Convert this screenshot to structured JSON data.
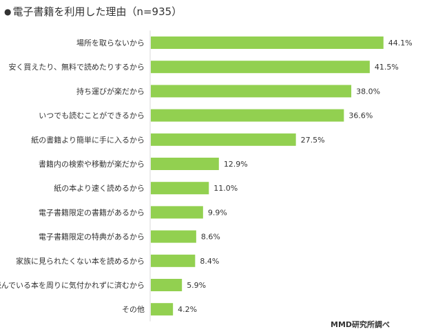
{
  "title": "電子書籍を利用した理由（n=935）",
  "bullet": "●",
  "credit": "MMD研究所調べ",
  "colors": {
    "bar": "#92d050",
    "text": "#333333",
    "axis": "#d9d9d9"
  },
  "chart_data": {
    "type": "bar",
    "orientation": "horizontal",
    "title": "電子書籍を利用した理由（n=935）",
    "xlabel": "",
    "ylabel": "",
    "xlim": [
      0,
      50
    ],
    "grid": false,
    "legend": "none",
    "categories": [
      "場所を取らないから",
      "安く買えたり、無料で読めたりするから",
      "持ち運びが楽だから",
      "いつでも読むことができるから",
      "紙の書籍より簡単に手に入るから",
      "書籍内の検索や移動が楽だから",
      "紙の本より速く読めるから",
      "電子書籍限定の書籍があるから",
      "電子書籍限定の特典があるから",
      "家族に見られたくない本を読めるから",
      "読んでいる本を周りに気付かれずに済むから",
      "その他"
    ],
    "values": [
      44.1,
      41.5,
      38.0,
      36.6,
      27.5,
      12.9,
      11.0,
      9.9,
      8.6,
      8.4,
      5.9,
      4.2
    ],
    "value_labels": [
      "44.1%",
      "41.5%",
      "38.0%",
      "36.6%",
      "27.5%",
      "12.9%",
      "11.0%",
      "9.9%",
      "8.6%",
      "8.4%",
      "5.9%",
      "4.2%"
    ]
  }
}
